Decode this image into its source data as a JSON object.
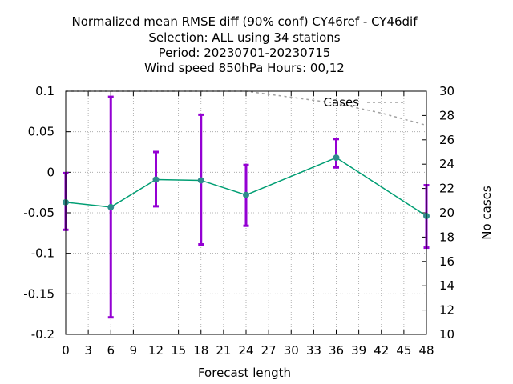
{
  "chart_data": {
    "type": "line",
    "title_lines": [
      "Normalized mean RMSE diff (90% conf) CY46ref - CY46dif",
      "Selection: ALL using    34 stations",
      "Period: 20230701-20230715",
      "Wind speed 850hPa   Hours:  00,12"
    ],
    "xlabel": "Forecast length",
    "ylabel": "",
    "y2label": "No cases",
    "xlim": [
      0,
      48
    ],
    "ylim": [
      -0.2,
      0.1
    ],
    "y2lim": [
      10,
      30
    ],
    "x_ticks": [
      0,
      3,
      6,
      9,
      12,
      15,
      18,
      21,
      24,
      27,
      30,
      33,
      36,
      39,
      42,
      45,
      48
    ],
    "y_ticks": [
      0.1,
      0.05,
      0,
      -0.05,
      -0.1,
      -0.15,
      -0.2
    ],
    "y_tick_labels": [
      "0.1",
      "0.05",
      "0",
      "-0.05",
      "-0.1",
      "-0.15",
      "-0.2"
    ],
    "y2_ticks": [
      30,
      28,
      26,
      24,
      22,
      20,
      18,
      16,
      14,
      12,
      10
    ],
    "grid": true,
    "series": [
      {
        "name": "",
        "color": "#009e73",
        "marker_color": "#2f8c8c",
        "x": [
          0,
          6,
          12,
          18,
          24,
          36,
          48
        ],
        "y": [
          -0.037,
          -0.043,
          -0.009,
          -0.01,
          -0.028,
          0.018,
          -0.054
        ]
      }
    ],
    "error_bars": {
      "color": "#9400d3",
      "x": [
        0,
        6,
        12,
        18,
        24,
        36,
        48
      ],
      "low": [
        -0.071,
        -0.179,
        -0.042,
        -0.089,
        -0.066,
        0.006,
        -0.093
      ],
      "high": [
        -0.001,
        0.093,
        0.025,
        0.071,
        0.009,
        0.041,
        -0.016
      ]
    },
    "cases": {
      "name": "Cases",
      "color": "#a0a0a0",
      "axis": "y2",
      "x": [
        0,
        6,
        12,
        18,
        24,
        30,
        36,
        42,
        48
      ],
      "y": [
        30,
        30,
        30,
        30,
        30,
        29.5,
        29,
        28.2,
        27.2
      ]
    },
    "legend": {
      "position": "top-right",
      "entries": [
        "Cases"
      ]
    }
  }
}
